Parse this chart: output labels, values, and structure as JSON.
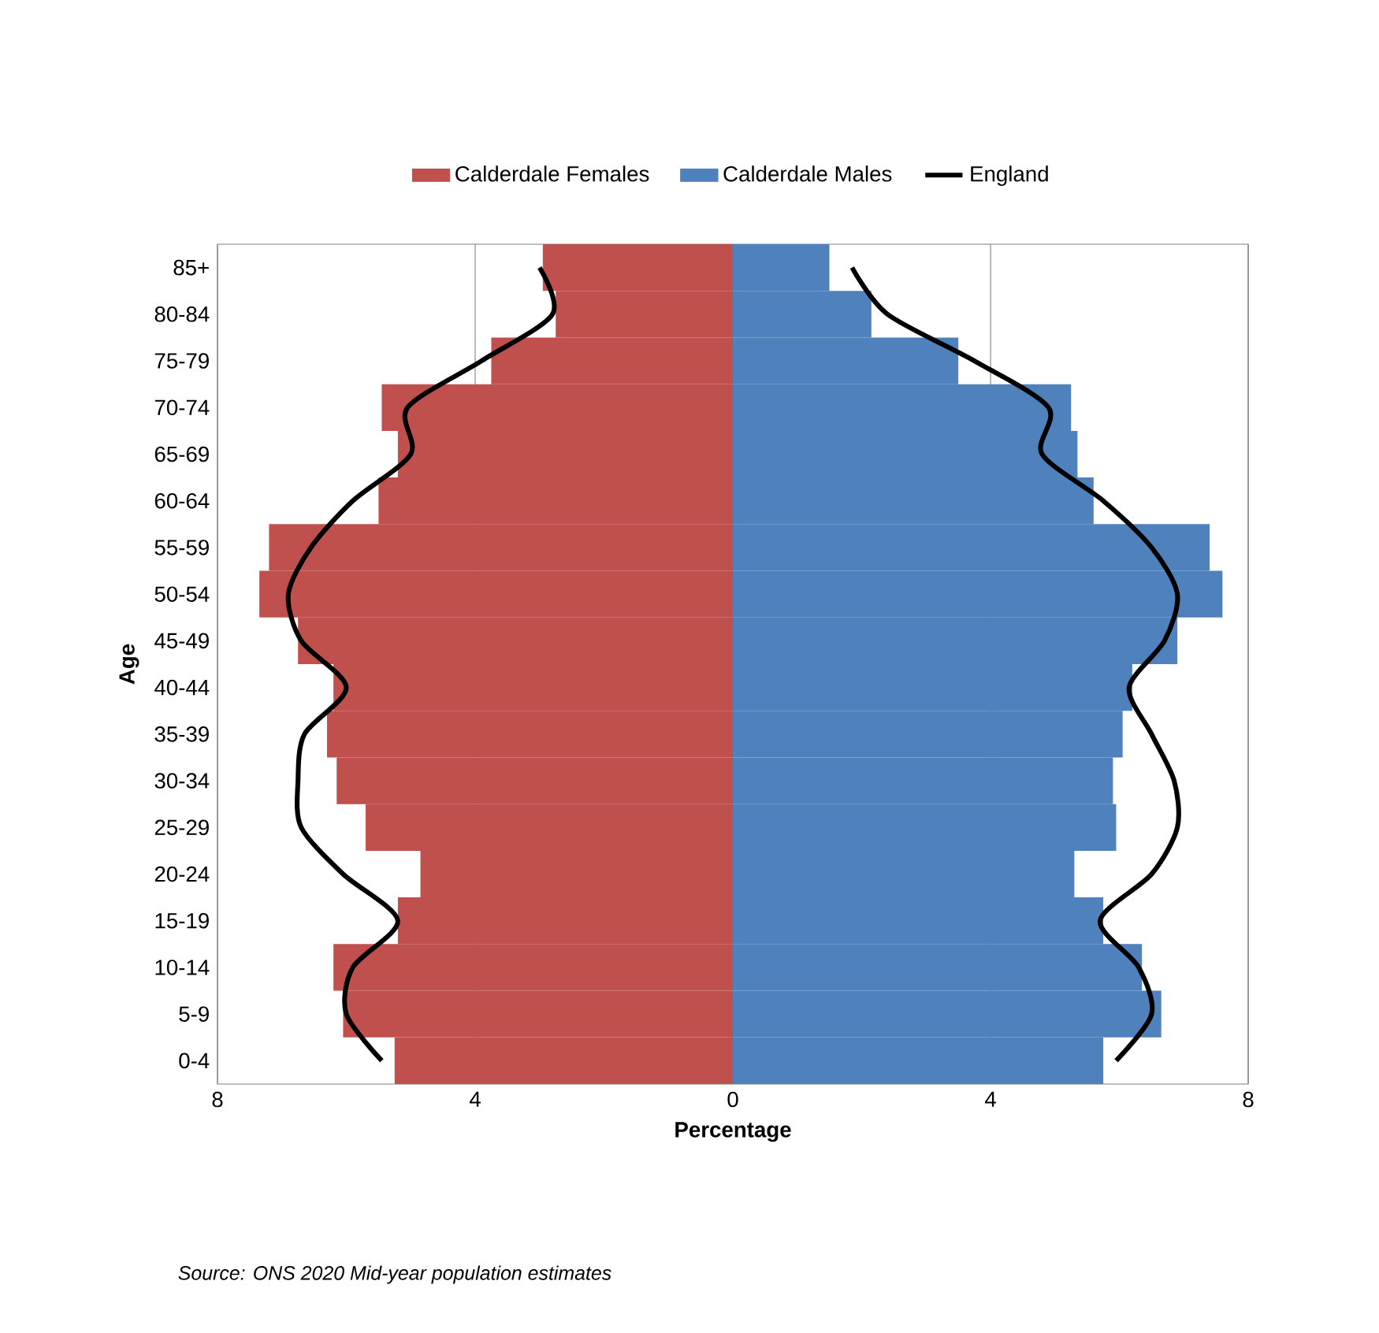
{
  "chart_data": {
    "type": "bar",
    "orientation": "horizontal",
    "xlabel": "Percentage",
    "ylabel": "Age",
    "categories": [
      "85+",
      "80-84",
      "75-79",
      "70-74",
      "65-69",
      "60-64",
      "55-59",
      "50-54",
      "45-49",
      "40-44",
      "35-39",
      "30-34",
      "25-29",
      "20-24",
      "15-19",
      "10-14",
      "5-9",
      "0-4"
    ],
    "series": [
      {
        "name": "Calderdale Females",
        "color": "#c0504d",
        "values": [
          -2.95,
          -2.75,
          -3.75,
          -5.45,
          -5.2,
          -5.5,
          -7.2,
          -7.35,
          -6.75,
          -6.2,
          -6.3,
          -6.15,
          -5.7,
          -4.85,
          -5.2,
          -6.2,
          -6.05,
          -5.25
        ]
      },
      {
        "name": "Calderdale Males",
        "color": "#4f81bd",
        "values": [
          1.5,
          2.15,
          3.5,
          5.25,
          5.35,
          5.6,
          7.4,
          7.6,
          6.9,
          6.2,
          6.05,
          5.9,
          5.95,
          5.3,
          5.75,
          6.35,
          6.65,
          5.75
        ]
      },
      {
        "name": "England",
        "type": "line",
        "color": "#000000",
        "values": [
          -3.0,
          -2.8,
          -3.9,
          -5.05,
          -5.0,
          -5.9,
          -6.55,
          -6.9,
          -6.7,
          -6.0,
          -6.65,
          -6.75,
          -6.7,
          -6.05,
          -5.2,
          -5.9,
          -6.0,
          -5.45
        ]
      },
      {
        "type": "line",
        "color": "#000000",
        "values": [
          1.85,
          2.4,
          3.75,
          4.9,
          4.8,
          5.75,
          6.5,
          6.9,
          6.7,
          6.15,
          6.5,
          6.85,
          6.9,
          6.5,
          5.7,
          6.3,
          6.5,
          5.95
        ]
      }
    ],
    "xlim": [
      -8,
      8
    ],
    "xticks": [
      {
        "value": -8,
        "label": "8"
      },
      {
        "value": -4,
        "label": "4"
      },
      0,
      4,
      8
    ],
    "grid": "x",
    "legend": "top",
    "stacked": true,
    "annotations": [
      "Source: ONS 2020 Mid-year population estimates"
    ]
  }
}
